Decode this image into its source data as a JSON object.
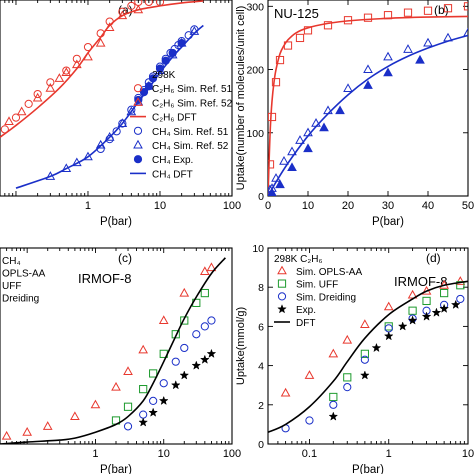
{
  "chart_data": [
    {
      "panel": "(a)",
      "type": "scatter",
      "title": "",
      "xlabel": "P(bar)",
      "ylabel": "",
      "xscale": "log",
      "xlim": [
        0.06,
        100
      ],
      "ylim": [
        0,
        1
      ],
      "xticks": [
        1,
        10,
        100
      ],
      "xticklabels": [
        "1",
        "10",
        "100"
      ],
      "legend": {
        "position": "right",
        "header": "298K",
        "entries": [
          {
            "label": "C₂H₆ Sim. Ref. 51",
            "marker": "circle-open",
            "color": "#e8382e"
          },
          {
            "label": "C₂H₆ Sim. Ref. 52",
            "marker": "triangle-open",
            "color": "#e8382e"
          },
          {
            "label": "C₂H₆ DFT",
            "marker": "line",
            "color": "#e8382e"
          },
          {
            "label": "CH₄ Sim. Ref. 51",
            "marker": "circle-open",
            "color": "#1a2fc8"
          },
          {
            "label": "CH₄ Sim. Ref. 52",
            "marker": "triangle-open",
            "color": "#1a2fc8"
          },
          {
            "label": "CH₄ Exp.",
            "marker": "circle-filled",
            "color": "#1a2fc8"
          },
          {
            "label": "CH₄ DFT",
            "marker": "line",
            "color": "#1a2fc8"
          }
        ]
      },
      "series": [
        {
          "name": "C₂H₆ Sim. Ref. 51",
          "marker": "circle-open",
          "color": "#e8382e",
          "x": [
            0.07,
            0.1,
            0.15,
            0.2,
            0.3,
            0.5,
            0.7,
            1,
            1.5,
            2,
            3,
            4,
            5,
            7,
            10
          ],
          "y": [
            0.34,
            0.4,
            0.47,
            0.52,
            0.58,
            0.64,
            0.7,
            0.76,
            0.83,
            0.89,
            0.94,
            0.97,
            0.99,
            0.99,
            0.99
          ]
        },
        {
          "name": "C₂H₆ Sim. Ref. 52",
          "marker": "triangle-open",
          "color": "#e8382e",
          "x": [
            0.08,
            0.12,
            0.2,
            0.3,
            0.4,
            0.5,
            0.7,
            1,
            1.5,
            2,
            3,
            5
          ],
          "y": [
            0.38,
            0.43,
            0.5,
            0.55,
            0.6,
            0.63,
            0.67,
            0.71,
            0.78,
            0.86,
            0.92,
            0.95
          ]
        },
        {
          "name": "C₂H₆ DFT",
          "marker": "line",
          "color": "#e8382e",
          "x": [
            0.06,
            0.1,
            0.2,
            0.4,
            0.7,
            1,
            1.5,
            2,
            3,
            5,
            10,
            20,
            40
          ],
          "y": [
            0.3,
            0.36,
            0.45,
            0.55,
            0.65,
            0.73,
            0.81,
            0.87,
            0.92,
            0.95,
            0.97,
            0.985,
            0.995
          ]
        },
        {
          "name": "CH₄ Sim. Ref. 51",
          "marker": "circle-open",
          "color": "#1a2fc8",
          "x": [
            1.5,
            2,
            2.5,
            3,
            4,
            5,
            6,
            7,
            8,
            10,
            12,
            14,
            16,
            18,
            20,
            25,
            30
          ],
          "y": [
            0.24,
            0.29,
            0.33,
            0.37,
            0.44,
            0.5,
            0.54,
            0.58,
            0.61,
            0.66,
            0.7,
            0.73,
            0.75,
            0.77,
            0.79,
            0.82,
            0.85
          ]
        },
        {
          "name": "CH₄ Sim. Ref. 52",
          "marker": "triangle-open",
          "color": "#1a2fc8",
          "x": [
            0.3,
            0.5,
            0.7,
            1,
            1.5,
            2,
            3,
            4,
            5,
            7,
            10,
            15,
            20,
            30
          ],
          "y": [
            0.1,
            0.14,
            0.17,
            0.2,
            0.26,
            0.3,
            0.37,
            0.43,
            0.48,
            0.56,
            0.64,
            0.72,
            0.78,
            0.84
          ]
        },
        {
          "name": "CH₄ Exp.",
          "marker": "circle-filled",
          "color": "#1a2fc8",
          "x": [
            5,
            6,
            7,
            8,
            10,
            12,
            15,
            20
          ],
          "y": [
            0.49,
            0.53,
            0.56,
            0.6,
            0.65,
            0.69,
            0.73,
            0.78
          ]
        },
        {
          "name": "CH₄ DFT",
          "marker": "line",
          "color": "#1a2fc8",
          "x": [
            0.1,
            0.3,
            0.5,
            1,
            2,
            3,
            5,
            7,
            10,
            15,
            20,
            30,
            40
          ],
          "y": [
            0.04,
            0.1,
            0.14,
            0.2,
            0.3,
            0.37,
            0.48,
            0.55,
            0.63,
            0.71,
            0.76,
            0.83,
            0.87
          ]
        }
      ]
    },
    {
      "panel": "(b)",
      "type": "scatter",
      "title": "",
      "annotation": "NU-125",
      "xlabel": "P(bar)",
      "ylabel": "Uptake(number of molecules/unit cell)",
      "xlim": [
        0,
        50
      ],
      "ylim": [
        0,
        310
      ],
      "xticks": [
        0,
        10,
        20,
        30,
        40,
        50
      ],
      "xticklabels": [
        "0",
        "10",
        "20",
        "30",
        "40",
        "50"
      ],
      "yticks": [
        0,
        100,
        200,
        300
      ],
      "yticklabels": [
        "0",
        "100",
        "200",
        "300"
      ],
      "series": [
        {
          "name": "",
          "marker": "square-open",
          "color": "#e8382e",
          "x": [
            0.5,
            1,
            2,
            3,
            5,
            8,
            10,
            15,
            20,
            25,
            30,
            35,
            40,
            45,
            50
          ],
          "y": [
            50,
            125,
            180,
            215,
            238,
            250,
            262,
            270,
            278,
            282,
            286,
            290,
            293,
            297,
            300
          ]
        },
        {
          "name": "",
          "marker": "line",
          "color": "#e8382e",
          "x": [
            0,
            0.3,
            0.6,
            1,
            1.5,
            2,
            3,
            4,
            5,
            7,
            10,
            15,
            20,
            30,
            40,
            50
          ],
          "y": [
            0,
            60,
            110,
            150,
            180,
            200,
            225,
            238,
            247,
            258,
            266,
            273,
            277,
            281,
            283,
            284
          ]
        },
        {
          "name": "",
          "marker": "triangle-open",
          "color": "#1a2fc8",
          "x": [
            0.5,
            1,
            2,
            4,
            6,
            8,
            10,
            12,
            15,
            20,
            25,
            30,
            35,
            40,
            45,
            50
          ],
          "y": [
            10,
            12,
            28,
            55,
            70,
            88,
            100,
            115,
            135,
            170,
            200,
            220,
            232,
            242,
            250,
            258
          ]
        },
        {
          "name": "",
          "marker": "triangle-filled",
          "color": "#1a2fc8",
          "x": [
            1,
            3,
            6,
            10,
            14,
            18,
            25,
            30,
            38
          ],
          "y": [
            5,
            18,
            45,
            75,
            108,
            135,
            175,
            195,
            215
          ]
        },
        {
          "name": "",
          "marker": "line",
          "color": "#1a2fc8",
          "x": [
            0,
            2,
            5,
            10,
            15,
            20,
            25,
            30,
            35,
            40,
            45,
            50
          ],
          "y": [
            0,
            22,
            52,
            95,
            130,
            160,
            185,
            205,
            221,
            234,
            245,
            254
          ]
        }
      ]
    },
    {
      "panel": "(c)",
      "type": "scatter",
      "title": "",
      "annotation": "IRMOF-8",
      "xlabel": "P(bar)",
      "ylabel": "",
      "xscale": "log",
      "xlim": [
        0.04,
        100
      ],
      "ylim": [
        0,
        1
      ],
      "xticks": [
        1,
        10,
        100
      ],
      "xticklabels": [
        "1",
        "10",
        "100"
      ],
      "legend": {
        "position": "top-left",
        "entries": [
          {
            "label": "CH₄",
            "marker": "none",
            "color": "#000000"
          },
          {
            "label": "OPLS-AA",
            "marker": "none",
            "color": "#000000"
          },
          {
            "label": "UFF",
            "marker": "none",
            "color": "#000000"
          },
          {
            "label": "Dreiding",
            "marker": "none",
            "color": "#000000"
          }
        ]
      },
      "series": [
        {
          "name": "OPLS-AA",
          "marker": "triangle-open",
          "color": "#e8382e",
          "x": [
            0.05,
            0.1,
            0.2,
            0.5,
            1,
            2,
            3,
            5,
            10,
            20,
            40,
            50
          ],
          "y": [
            0.04,
            0.06,
            0.09,
            0.14,
            0.2,
            0.29,
            0.37,
            0.48,
            0.63,
            0.77,
            0.88,
            0.9
          ]
        },
        {
          "name": "UFF",
          "marker": "square-open",
          "color": "#1c9a2c",
          "x": [
            2,
            3,
            5,
            7,
            10,
            15,
            20,
            30,
            40
          ],
          "y": [
            0.12,
            0.19,
            0.28,
            0.36,
            0.46,
            0.56,
            0.63,
            0.72,
            0.77
          ]
        },
        {
          "name": "Dreiding",
          "marker": "circle-open",
          "color": "#1a2fc8",
          "x": [
            3,
            5,
            7,
            10,
            15,
            20,
            30,
            40,
            50
          ],
          "y": [
            0.09,
            0.15,
            0.22,
            0.31,
            0.42,
            0.49,
            0.56,
            0.6,
            0.63
          ]
        },
        {
          "name": "Exp.",
          "marker": "star",
          "color": "#000000",
          "x": [
            5,
            7,
            10,
            15,
            20,
            30,
            40,
            50
          ],
          "y": [
            0.11,
            0.16,
            0.22,
            0.3,
            0.35,
            0.4,
            0.43,
            0.46
          ]
        },
        {
          "name": "DFT",
          "marker": "line",
          "color": "#000000",
          "x": [
            0.04,
            0.1,
            0.3,
            0.5,
            1,
            2,
            3,
            5,
            7,
            10,
            15,
            20,
            30,
            50,
            80
          ],
          "y": [
            0.0,
            0.01,
            0.02,
            0.03,
            0.06,
            0.1,
            0.14,
            0.22,
            0.31,
            0.42,
            0.55,
            0.64,
            0.75,
            0.87,
            0.95
          ]
        }
      ]
    },
    {
      "panel": "(d)",
      "type": "scatter",
      "title": "",
      "annotation": "IRMOF-8",
      "xlabel": "P(bar)",
      "ylabel": "Uptake(mmol/g)",
      "xscale": "log",
      "xlim": [
        0.03,
        10
      ],
      "ylim": [
        0,
        10
      ],
      "xticks": [
        0.1,
        1,
        10
      ],
      "xticklabels": [
        "0.1",
        "1",
        "10"
      ],
      "yticks": [
        0,
        2,
        4,
        6,
        8,
        10
      ],
      "yticklabels": [
        "0",
        "2",
        "4",
        "6",
        "8",
        "10"
      ],
      "legend": {
        "position": "top-left",
        "header": "298K C₂H₆",
        "entries": [
          {
            "label": "Sim. OPLS-AA",
            "marker": "triangle-open",
            "color": "#e8382e"
          },
          {
            "label": "Sim. UFF",
            "marker": "square-open",
            "color": "#1c9a2c"
          },
          {
            "label": "Sim. Dreiding",
            "marker": "circle-open",
            "color": "#1a2fc8"
          },
          {
            "label": "Exp.",
            "marker": "star",
            "color": "#000000"
          },
          {
            "label": "DFT",
            "marker": "line",
            "color": "#000000"
          }
        ]
      },
      "series": [
        {
          "name": "Sim. OPLS-AA",
          "marker": "triangle-open",
          "color": "#e8382e",
          "x": [
            0.05,
            0.1,
            0.2,
            0.3,
            0.5,
            1,
            2,
            3,
            5,
            8
          ],
          "y": [
            2.6,
            3.5,
            4.6,
            5.3,
            6.1,
            7.0,
            7.6,
            7.8,
            8.1,
            8.3
          ]
        },
        {
          "name": "Sim. UFF",
          "marker": "square-open",
          "color": "#1c9a2c",
          "x": [
            0.2,
            0.3,
            0.5,
            1,
            2,
            3,
            5,
            8
          ],
          "y": [
            2.4,
            3.4,
            4.6,
            6.0,
            6.8,
            7.3,
            7.7,
            8.1
          ]
        },
        {
          "name": "Sim. Dreiding",
          "marker": "circle-open",
          "color": "#1a2fc8",
          "x": [
            0.05,
            0.1,
            0.2,
            0.3,
            0.5,
            1,
            2,
            3,
            5,
            8
          ],
          "y": [
            0.8,
            1.2,
            2.0,
            2.9,
            4.3,
            5.9,
            6.4,
            6.8,
            7.1,
            7.4
          ]
        },
        {
          "name": "Exp.",
          "marker": "star",
          "color": "#000000",
          "x": [
            0.2,
            0.5,
            0.7,
            1,
            1.5,
            2,
            3,
            4,
            5,
            7
          ],
          "y": [
            1.4,
            3.5,
            4.9,
            5.5,
            6.0,
            6.3,
            6.5,
            6.7,
            6.9,
            7.1
          ]
        },
        {
          "name": "DFT",
          "marker": "line",
          "color": "#000000",
          "x": [
            0.03,
            0.05,
            0.1,
            0.2,
            0.3,
            0.5,
            1,
            2,
            3,
            5,
            10
          ],
          "y": [
            0.6,
            1.0,
            1.9,
            3.2,
            4.2,
            5.4,
            6.6,
            7.4,
            7.8,
            8.1,
            8.3
          ]
        }
      ]
    }
  ]
}
